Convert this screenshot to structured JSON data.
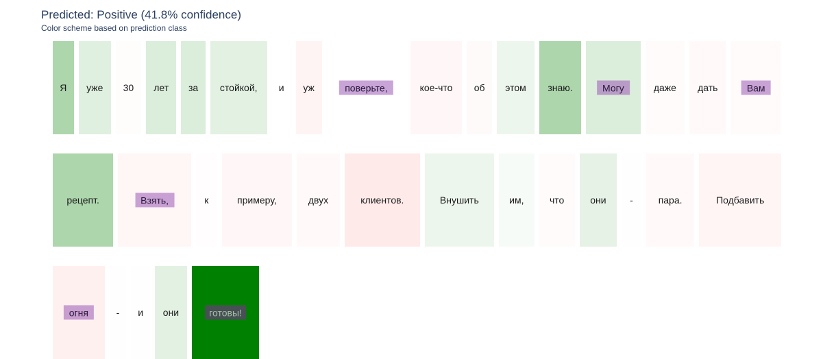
{
  "header": {
    "title": "Predicted: Positive (41.8% confidence)",
    "subtitle": "Color scheme based on prediction class"
  },
  "colors": {
    "positive": "#008000",
    "negative": "#ff0000",
    "highlight": "#9b59b6"
  },
  "chart_data": {
    "type": "heatmap",
    "rows": [
      {
        "tokens": [
          {
            "text": "Я",
            "weight": 0.32,
            "highlight": false
          },
          {
            "text": "уже",
            "weight": 0.12,
            "highlight": false
          },
          {
            "text": "30",
            "weight": -0.03,
            "highlight": false
          },
          {
            "text": "лет",
            "weight": 0.14,
            "highlight": false
          },
          {
            "text": "за",
            "weight": 0.14,
            "highlight": false
          },
          {
            "text": "стойкой,",
            "weight": 0.11,
            "highlight": false
          },
          {
            "text": "и",
            "weight": 0.0,
            "highlight": false
          },
          {
            "text": "уж",
            "weight": -0.12,
            "highlight": false
          },
          {
            "text": "поверьте,",
            "weight": 0.0,
            "highlight": true
          },
          {
            "text": "кое-что",
            "weight": -0.08,
            "highlight": false
          },
          {
            "text": "об",
            "weight": -0.05,
            "highlight": false
          },
          {
            "text": "этом",
            "weight": 0.07,
            "highlight": false
          },
          {
            "text": "знаю.",
            "weight": 0.32,
            "highlight": false
          },
          {
            "text": "Могу",
            "weight": 0.14,
            "highlight": true
          },
          {
            "text": "даже",
            "weight": -0.04,
            "highlight": false
          },
          {
            "text": "дать",
            "weight": -0.06,
            "highlight": false
          },
          {
            "text": "Вам",
            "weight": -0.04,
            "highlight": true
          }
        ]
      },
      {
        "tokens": [
          {
            "text": "рецепт.",
            "weight": 0.32,
            "highlight": false
          },
          {
            "text": "Взять,",
            "weight": -0.1,
            "highlight": true
          },
          {
            "text": "к",
            "weight": -0.02,
            "highlight": false
          },
          {
            "text": "примеру,",
            "weight": -0.08,
            "highlight": false
          },
          {
            "text": "двух",
            "weight": -0.06,
            "highlight": false
          },
          {
            "text": "клиентов.",
            "weight": -0.22,
            "highlight": false
          },
          {
            "text": "Внушить",
            "weight": 0.07,
            "highlight": false
          },
          {
            "text": "им,",
            "weight": 0.03,
            "highlight": false
          },
          {
            "text": "что",
            "weight": -0.04,
            "highlight": false
          },
          {
            "text": "они",
            "weight": 0.1,
            "highlight": false
          },
          {
            "text": "-",
            "weight": -0.01,
            "highlight": false
          },
          {
            "text": "пара.",
            "weight": -0.06,
            "highlight": false
          },
          {
            "text": "Подбавить",
            "weight": -0.11,
            "highlight": false
          }
        ]
      },
      {
        "tokens": [
          {
            "text": "огня",
            "weight": -0.16,
            "highlight": true
          },
          {
            "text": "-",
            "weight": -0.01,
            "highlight": false
          },
          {
            "text": "и",
            "weight": -0.01,
            "highlight": false
          },
          {
            "text": "они",
            "weight": 0.11,
            "highlight": false
          },
          {
            "text": "готовы!",
            "weight": 1.0,
            "highlight": true
          }
        ]
      }
    ]
  }
}
